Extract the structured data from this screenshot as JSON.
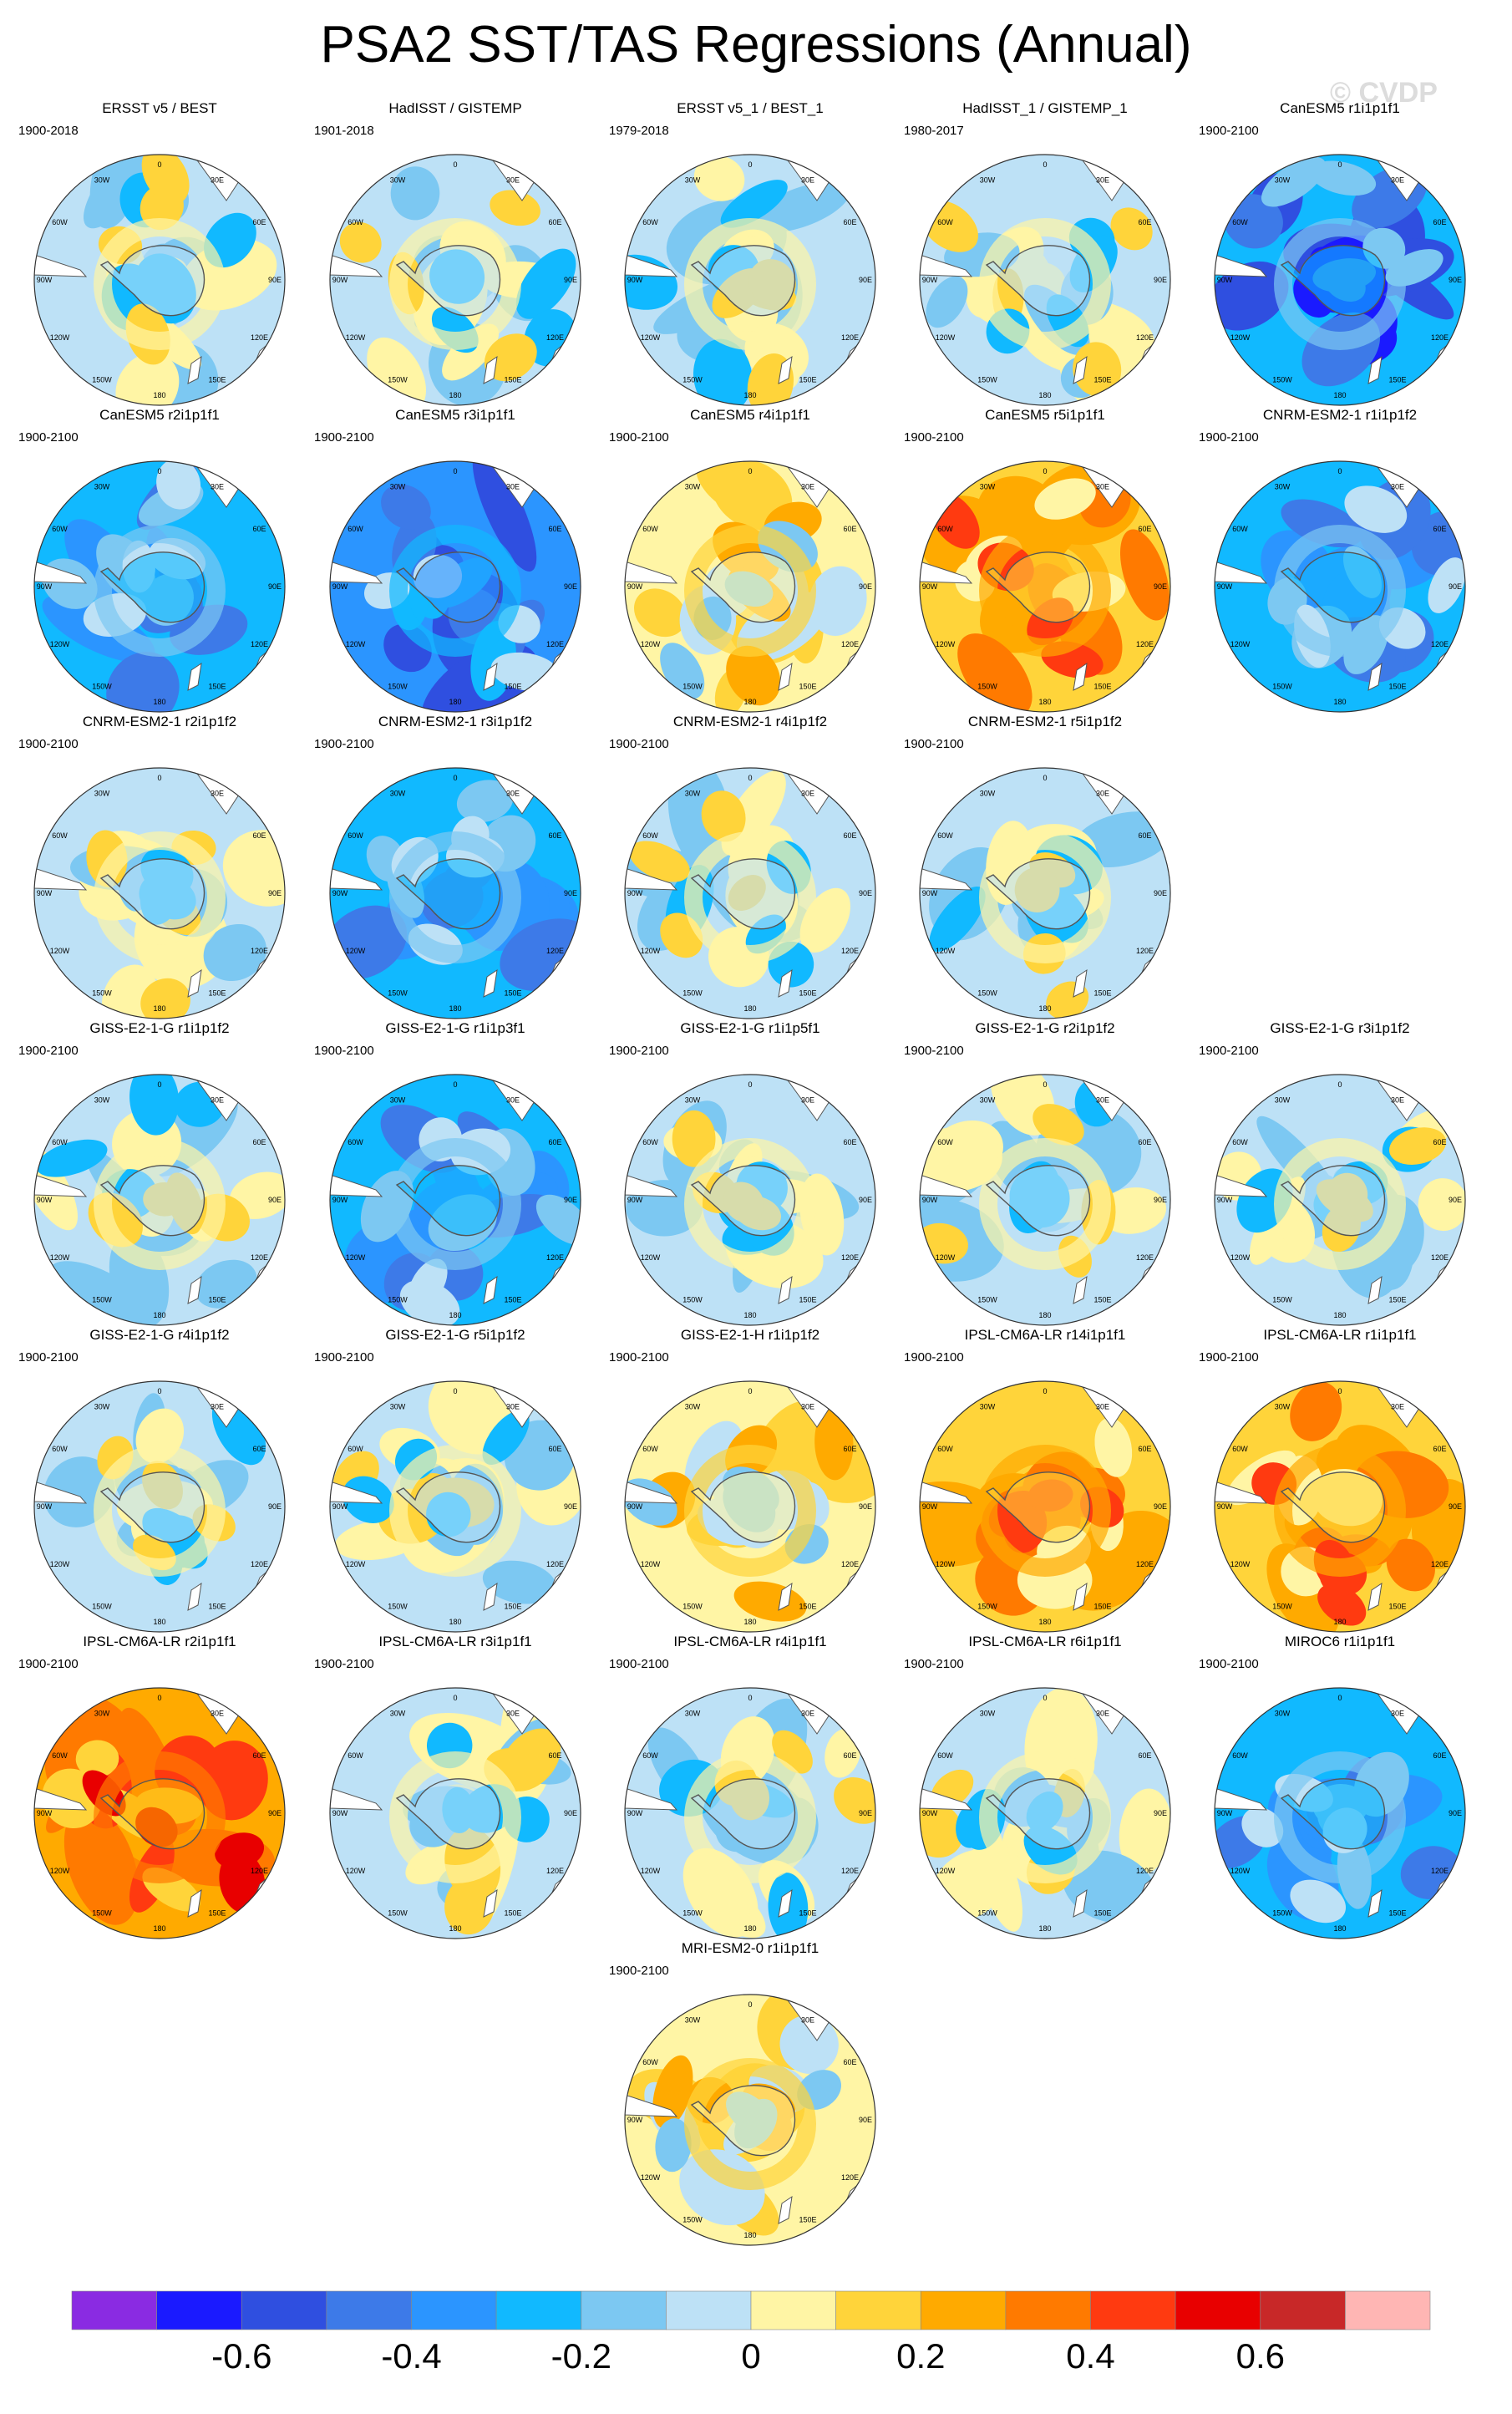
{
  "title": "PSA2 SST/TAS Regressions (Annual)",
  "watermark": "© CVDP",
  "colorbar": {
    "colors": [
      "#8a2be2",
      "#1a1aff",
      "#2f4fe0",
      "#3d7ae8",
      "#2b95ff",
      "#11b9ff",
      "#7cc8f2",
      "#bde1f6",
      "#fff5a5",
      "#ffd43a",
      "#ffaa00",
      "#ff7a00",
      "#ff3a10",
      "#e80000",
      "#c82828",
      "#ffb6b4"
    ],
    "labels": [
      "-0.6",
      "-0.4",
      "-0.2",
      "0",
      "0.2",
      "0.4",
      "0.6"
    ]
  },
  "map_labels": {
    "top": "0",
    "tr1": "30E",
    "tr2": "60E",
    "right": "90E",
    "br1": "120E",
    "br2": "150E",
    "bottom": "180",
    "bl2": "150W",
    "bl1": "120W",
    "left": "90W",
    "tl2": "60W",
    "tl1": "30W"
  },
  "panels": [
    {
      "title": "ERSST v5 / BEST",
      "period": "1900-2018",
      "mood": "cool"
    },
    {
      "title": "HadISST / GISTEMP",
      "period": "1901-2018",
      "mood": "cool"
    },
    {
      "title": "ERSST v5_1 / BEST_1",
      "period": "1979-2018",
      "mood": "cool"
    },
    {
      "title": "HadISST_1 / GISTEMP_1",
      "period": "1980-2017",
      "mood": "neutral"
    },
    {
      "title": "CanESM5 r1i1p1f1",
      "period": "1900-2100",
      "mood": "deepcold"
    },
    {
      "title": "CanESM5 r2i1p1f1",
      "period": "1900-2100",
      "mood": "cold"
    },
    {
      "title": "CanESM5 r3i1p1f1",
      "period": "1900-2100",
      "mood": "colder"
    },
    {
      "title": "CanESM5 r4i1p1f1",
      "period": "1900-2100",
      "mood": "warm"
    },
    {
      "title": "CanESM5 r5i1p1f1",
      "period": "1900-2100",
      "mood": "hot"
    },
    {
      "title": "CNRM-ESM2-1 r1i1p1f2",
      "period": "1900-2100",
      "mood": "cold"
    },
    {
      "title": "CNRM-ESM2-1 r2i1p1f2",
      "period": "1900-2100",
      "mood": "neutral"
    },
    {
      "title": "CNRM-ESM2-1 r3i1p1f2",
      "period": "1900-2100",
      "mood": "cold"
    },
    {
      "title": "CNRM-ESM2-1 r4i1p1f2",
      "period": "1900-2100",
      "mood": "cool"
    },
    {
      "title": "CNRM-ESM2-1 r5i1p1f2",
      "period": "1900-2100",
      "mood": "cool"
    },
    {
      "title": "GISS-E2-1-G r1i1p1f2",
      "period": "1900-2100",
      "mood": "cool"
    },
    {
      "title": "GISS-E2-1-G r1i1p3f1",
      "period": "1900-2100",
      "mood": "cold"
    },
    {
      "title": "GISS-E2-1-G r1i1p5f1",
      "period": "1900-2100",
      "mood": "cool"
    },
    {
      "title": "GISS-E2-1-G r2i1p1f2",
      "period": "1900-2100",
      "mood": "cool"
    },
    {
      "title": "GISS-E2-1-G r3i1p1f2",
      "period": "1900-2100",
      "mood": "cool"
    },
    {
      "title": "GISS-E2-1-G r4i1p1f2",
      "period": "1900-2100",
      "mood": "cool"
    },
    {
      "title": "GISS-E2-1-G r5i1p1f2",
      "period": "1900-2100",
      "mood": "neutral"
    },
    {
      "title": "GISS-E2-1-H r1i1p1f2",
      "period": "1900-2100",
      "mood": "warm"
    },
    {
      "title": "IPSL-CM6A-LR r14i1p1f1",
      "period": "1900-2100",
      "mood": "hot"
    },
    {
      "title": "IPSL-CM6A-LR r1i1p1f1",
      "period": "1900-2100",
      "mood": "hot"
    },
    {
      "title": "IPSL-CM6A-LR r2i1p1f1",
      "period": "1900-2100",
      "mood": "hotter"
    },
    {
      "title": "IPSL-CM6A-LR r3i1p1f1",
      "period": "1900-2100",
      "mood": "neutral"
    },
    {
      "title": "IPSL-CM6A-LR r4i1p1f1",
      "period": "1900-2100",
      "mood": "cool"
    },
    {
      "title": "IPSL-CM6A-LR r6i1p1f1",
      "period": "1900-2100",
      "mood": "neutral"
    },
    {
      "title": "MIROC6 r1i1p1f1",
      "period": "1900-2100",
      "mood": "cold"
    },
    {
      "title": "MRI-ESM2-0 r1i1p1f1",
      "period": "1900-2100",
      "mood": "warm"
    }
  ]
}
